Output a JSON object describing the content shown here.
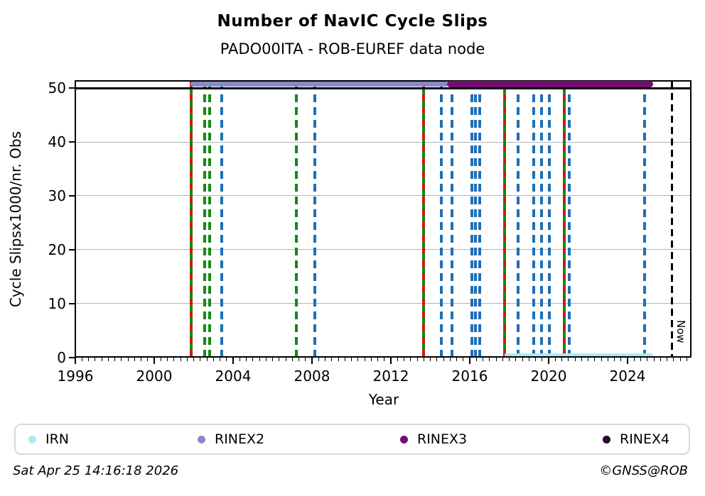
{
  "header": {
    "title": "Number of NavIC Cycle Slips",
    "subtitle": "PADO00ITA - ROB-EUREF data node"
  },
  "footer": {
    "timestamp": "Sat Apr 25 14:16:18 2026",
    "credit": "©GNSS@ROB"
  },
  "legend": {
    "items": [
      {
        "label": "IRN",
        "color": "#aceaf0"
      },
      {
        "label": "RINEX2",
        "color": "#8a88cb"
      },
      {
        "label": "RINEX3",
        "color": "#740c74"
      },
      {
        "label": "RINEX4",
        "color": "#2b0a2f"
      }
    ]
  },
  "chart_data": {
    "type": "line",
    "title": "Number of NavIC Cycle Slips",
    "subtitle": "PADO00ITA - ROB-EUREF data node",
    "xlabel": "Year",
    "ylabel": "Cycle Slipsx1000/nr. Obs",
    "xlim": [
      1996,
      2027.3
    ],
    "ylim": [
      0,
      51.5
    ],
    "xticks": [
      1996,
      2000,
      2004,
      2008,
      2012,
      2016,
      2020,
      2024
    ],
    "yticks": [
      0,
      10,
      20,
      30,
      40,
      50
    ],
    "minor_xtick_step_years": 0.3333,
    "grid": "horizontal-gray-at-10-20-30-40",
    "grid_color": "#b3b3b3",
    "hline": {
      "y": 50,
      "color": "#000000"
    },
    "legend_position": "bottom",
    "series": [
      {
        "name": "IRN",
        "color": "#aceaf0",
        "value": 0.5,
        "start": 2017.78,
        "end": 2025.28,
        "thickness": 4
      },
      {
        "name": "RINEX2",
        "color": "#8a88cb",
        "value": 50.8,
        "start": 2001.85,
        "end": 2014.92,
        "thickness": 7
      },
      {
        "name": "RINEX3",
        "color": "#740c74",
        "value": 50.8,
        "start": 2014.85,
        "end": 2025.28,
        "thickness": 9
      },
      {
        "name": "RINEX4",
        "color": "#2b0a2f",
        "value": null,
        "start": null,
        "end": null,
        "thickness": 0
      }
    ],
    "event_lines": [
      {
        "year": 2001.87,
        "style": "green-solid-red-dash"
      },
      {
        "year": 2002.55,
        "style": "green-dash"
      },
      {
        "year": 2002.8,
        "style": "green-dash"
      },
      {
        "year": 2003.42,
        "style": "blue-dash"
      },
      {
        "year": 2007.2,
        "style": "green-dash"
      },
      {
        "year": 2008.13,
        "style": "blue-dash"
      },
      {
        "year": 2013.64,
        "style": "green-solid-red-dash"
      },
      {
        "year": 2014.57,
        "style": "blue-dash"
      },
      {
        "year": 2015.11,
        "style": "blue-dash"
      },
      {
        "year": 2016.12,
        "style": "blue-dash"
      },
      {
        "year": 2016.3,
        "style": "blue-dash"
      },
      {
        "year": 2016.52,
        "style": "blue-dash"
      },
      {
        "year": 2017.78,
        "style": "green-solid-red-dash"
      },
      {
        "year": 2018.46,
        "style": "blue-dash"
      },
      {
        "year": 2019.25,
        "style": "blue-dash"
      },
      {
        "year": 2019.65,
        "style": "blue-dash"
      },
      {
        "year": 2020.05,
        "style": "blue-dash"
      },
      {
        "year": 2020.8,
        "style": "green-solid-red-dash"
      },
      {
        "year": 2021.05,
        "style": "blue-dash"
      },
      {
        "year": 2024.87,
        "style": "blue-dash"
      }
    ],
    "now_marker": {
      "year": 2026.25,
      "label": "Now"
    }
  }
}
